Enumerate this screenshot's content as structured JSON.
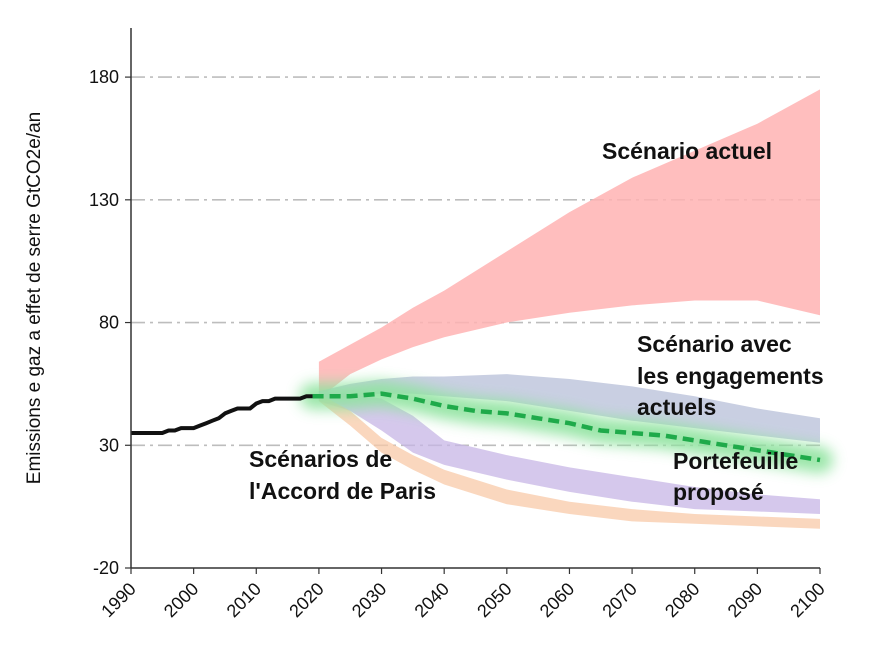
{
  "chart_data": {
    "type": "area",
    "ylabel": "Emissions e gaz a effet de serre  GtCO2e/an",
    "xlim": [
      1990,
      2100
    ],
    "ylim": [
      -20,
      200
    ],
    "x_ticks": [
      "1990",
      "2000",
      "2010",
      "2020",
      "2030",
      "2040",
      "2050",
      "2060",
      "2070",
      "2080",
      "2090",
      "2100"
    ],
    "y_ticks": [
      "180",
      "130",
      "80",
      "30",
      "-20"
    ],
    "grid": "horizontal dash-dot",
    "colors": {
      "historical": "#111111",
      "current": "#ffb3b3",
      "pledges": "#b7bfd8",
      "paris_purple": "#c7b6e6",
      "paris_orange": "#f8c9a8",
      "portfolio": "#1faa4a",
      "portfolio_glow": "#8fe39f"
    },
    "annotations": {
      "current": "Scénario actuel",
      "pledges_l1": "Scénario avec",
      "pledges_l2": "les engagements",
      "pledges_l3": "actuels",
      "paris_l1": "Scénarios de",
      "paris_l2": "l'Accord de Paris",
      "portfolio_l1": "Portefeuille",
      "portfolio_l2": "proposé"
    },
    "historical": {
      "x": [
        1990,
        1992,
        1994,
        1995,
        1996,
        1997,
        1998,
        1999,
        2000,
        2001,
        2002,
        2003,
        2004,
        2005,
        2006,
        2007,
        2008,
        2009,
        2010,
        2011,
        2012,
        2013,
        2014,
        2015,
        2016,
        2017,
        2018,
        2019
      ],
      "y": [
        35,
        35,
        35,
        35,
        36,
        36,
        37,
        37,
        37,
        38,
        39,
        40,
        41,
        43,
        44,
        45,
        45,
        45,
        47,
        48,
        48,
        49,
        49,
        49,
        49,
        49,
        50,
        50
      ]
    },
    "bands": [
      {
        "key": "current",
        "x": [
          2020,
          2025,
          2030,
          2035,
          2040,
          2050,
          2060,
          2070,
          2080,
          2090,
          2100
        ],
        "upper": [
          64,
          71,
          78,
          86,
          93,
          109,
          125,
          139,
          150,
          161,
          175
        ],
        "lower": [
          49,
          59,
          65,
          70,
          74,
          80,
          84,
          87,
          89,
          89,
          83
        ]
      },
      {
        "key": "pledges",
        "x": [
          2020,
          2025,
          2030,
          2035,
          2040,
          2050,
          2060,
          2070,
          2080,
          2090,
          2100
        ],
        "upper": [
          52,
          55,
          57,
          58,
          58,
          59,
          57,
          54,
          50,
          45,
          41
        ],
        "lower": [
          48,
          50,
          51,
          51,
          50,
          48,
          44,
          40,
          37,
          34,
          31
        ]
      },
      {
        "key": "paris_purple",
        "x": [
          2020,
          2025,
          2030,
          2035,
          2040,
          2050,
          2060,
          2070,
          2080,
          2090,
          2100
        ],
        "upper": [
          52,
          51,
          49,
          42,
          32,
          26,
          21,
          17,
          13,
          10,
          8
        ],
        "lower": [
          48,
          44,
          36,
          27,
          22,
          16,
          11,
          7,
          4,
          3,
          2
        ]
      },
      {
        "key": "paris_orange",
        "x": [
          2020,
          2025,
          2030,
          2035,
          2040,
          2050,
          2060,
          2070,
          2080,
          2090,
          2100
        ],
        "upper": [
          51,
          44,
          33,
          26,
          20,
          12,
          7,
          4,
          2,
          1,
          0
        ],
        "lower": [
          48,
          38,
          27,
          20,
          14,
          6,
          2,
          -1,
          -2,
          -3,
          -4
        ]
      }
    ],
    "portfolio": {
      "x": [
        2019,
        2025,
        2030,
        2035,
        2040,
        2045,
        2050,
        2055,
        2060,
        2065,
        2070,
        2075,
        2080,
        2085,
        2090,
        2095,
        2100
      ],
      "y": [
        50,
        50,
        51,
        49,
        46,
        44,
        43,
        41,
        39,
        36,
        35,
        34,
        32,
        30,
        28,
        26,
        24
      ]
    }
  }
}
